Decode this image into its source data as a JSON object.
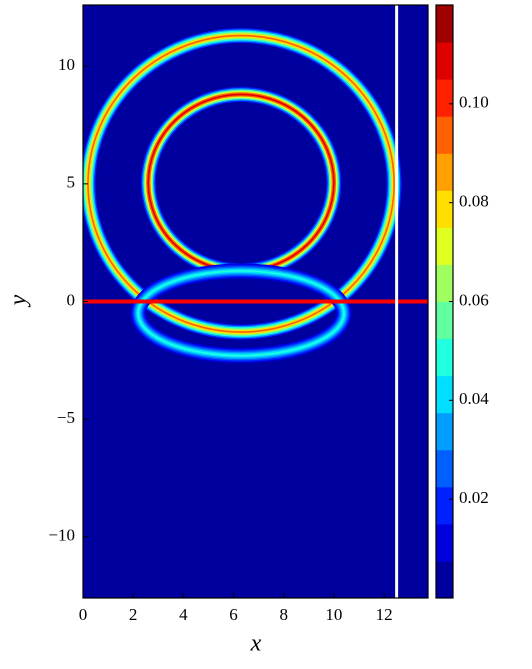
{
  "chart_data": {
    "type": "contour",
    "xlabel": "x",
    "ylabel": "y",
    "xlim": [
      0,
      13.75
    ],
    "ylim": [
      -12.6,
      12.6
    ],
    "xticks": [
      0,
      2,
      4,
      6,
      8,
      10,
      12
    ],
    "yticks": [
      {
        "value": -10,
        "label": "−10"
      },
      {
        "value": -5,
        "label": "−5"
      },
      0,
      5,
      10
    ],
    "colormap": "jet",
    "background": 0,
    "clim": [
      0,
      0.12
    ],
    "levels": 16,
    "cticks": [
      0.02,
      0.04,
      0.06,
      0.08,
      0.1
    ],
    "cticklabels": [
      "0.02",
      "0.04",
      "0.06",
      "0.08",
      "0.10"
    ],
    "rings": [
      {
        "cx": 6.3,
        "cy": 5.05,
        "rx": 3.7,
        "ry": 3.75,
        "peak": 0.11
      },
      {
        "cx": 6.3,
        "cy": 5.0,
        "rx": 6.1,
        "ry": 6.3,
        "peak": 0.09
      },
      {
        "cx": 6.3,
        "cy": -0.5,
        "rx": 4.1,
        "ry": 1.8,
        "peak": 0.05
      }
    ],
    "hlines": [
      {
        "y": 0,
        "color": "#ff0000"
      }
    ],
    "vlines": [
      {
        "x": 12.5,
        "color": "#ffffff"
      }
    ]
  }
}
